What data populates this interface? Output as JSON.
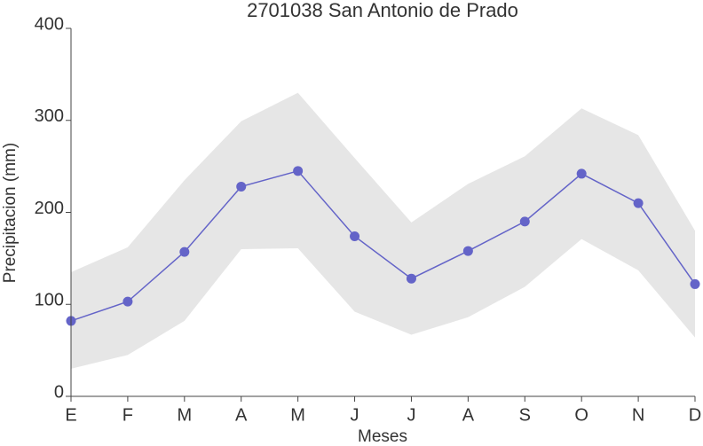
{
  "chart_data": {
    "type": "line",
    "title": "2701038 San Antonio de Prado",
    "x_label": "Meses",
    "y_label": "Precipitacion (mm)",
    "categories": [
      "E",
      "F",
      "M",
      "A",
      "M",
      "J",
      "J",
      "A",
      "S",
      "O",
      "N",
      "D"
    ],
    "values": [
      82,
      103,
      157,
      228,
      245,
      174,
      128,
      158,
      190,
      242,
      210,
      122
    ],
    "band_upper": [
      135,
      162,
      235,
      299,
      330,
      259,
      189,
      231,
      261,
      313,
      284,
      180
    ],
    "band_lower": [
      30,
      45,
      82,
      160,
      161,
      92,
      67,
      86,
      119,
      171,
      137,
      64
    ],
    "color": "#6464c8",
    "band_color": "#e6e6e6",
    "ylim": [
      0,
      400
    ],
    "yticks": [
      0,
      100,
      200,
      300,
      400
    ],
    "grid": false
  }
}
